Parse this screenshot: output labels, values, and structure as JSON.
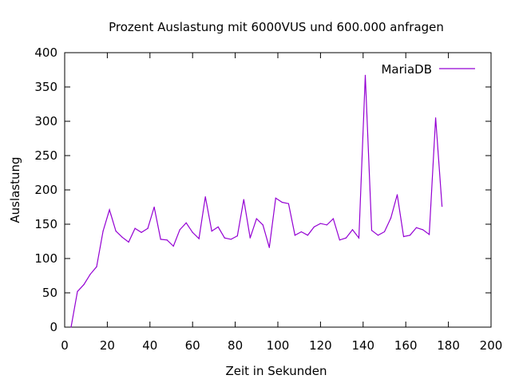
{
  "chart_data": {
    "type": "line",
    "title": "Prozent Auslastung mit 6000VUS und 600.000 anfragen",
    "xlabel": "Zeit in Sekunden",
    "ylabel": "Auslastung",
    "xlim": [
      0,
      200
    ],
    "ylim": [
      0,
      400
    ],
    "xticks": [
      0,
      20,
      40,
      60,
      80,
      100,
      120,
      140,
      160,
      180,
      200
    ],
    "yticks": [
      0,
      50,
      100,
      150,
      200,
      250,
      300,
      350,
      400
    ],
    "xtick_labels": [
      "0",
      "20",
      "40",
      "60",
      "80",
      "100",
      "120",
      "140",
      "160",
      "180",
      "200"
    ],
    "ytick_labels": [
      "0",
      "50",
      "100",
      "150",
      "200",
      "250",
      "300",
      "350",
      "400"
    ],
    "grid": false,
    "legend_position": "top-right",
    "series": [
      {
        "name": "MariaDB",
        "color": "#9400d3",
        "points": [
          [
            3,
            0
          ],
          [
            6,
            52
          ],
          [
            9,
            62
          ],
          [
            12,
            77
          ],
          [
            15,
            88
          ],
          [
            18,
            140
          ],
          [
            21,
            171
          ],
          [
            24,
            140
          ],
          [
            27,
            131
          ],
          [
            30,
            124
          ],
          [
            33,
            144
          ],
          [
            36,
            138
          ],
          [
            39,
            144
          ],
          [
            42,
            175
          ],
          [
            45,
            128
          ],
          [
            48,
            127
          ],
          [
            51,
            118
          ],
          [
            54,
            142
          ],
          [
            57,
            152
          ],
          [
            60,
            138
          ],
          [
            63,
            129
          ],
          [
            66,
            190
          ],
          [
            69,
            140
          ],
          [
            72,
            146
          ],
          [
            75,
            130
          ],
          [
            78,
            128
          ],
          [
            81,
            133
          ],
          [
            84,
            186
          ],
          [
            87,
            130
          ],
          [
            90,
            158
          ],
          [
            93,
            149
          ],
          [
            96,
            116
          ],
          [
            99,
            188
          ],
          [
            102,
            182
          ],
          [
            105,
            180
          ],
          [
            108,
            134
          ],
          [
            111,
            139
          ],
          [
            114,
            134
          ],
          [
            117,
            146
          ],
          [
            120,
            151
          ],
          [
            123,
            149
          ],
          [
            126,
            158
          ],
          [
            129,
            127
          ],
          [
            132,
            130
          ],
          [
            135,
            142
          ],
          [
            138,
            130
          ],
          [
            141,
            367
          ],
          [
            144,
            141
          ],
          [
            147,
            134
          ],
          [
            150,
            139
          ],
          [
            153,
            159
          ],
          [
            156,
            193
          ],
          [
            159,
            132
          ],
          [
            162,
            134
          ],
          [
            165,
            145
          ],
          [
            168,
            142
          ],
          [
            171,
            135
          ],
          [
            174,
            305
          ],
          [
            177,
            176
          ]
        ]
      }
    ]
  }
}
